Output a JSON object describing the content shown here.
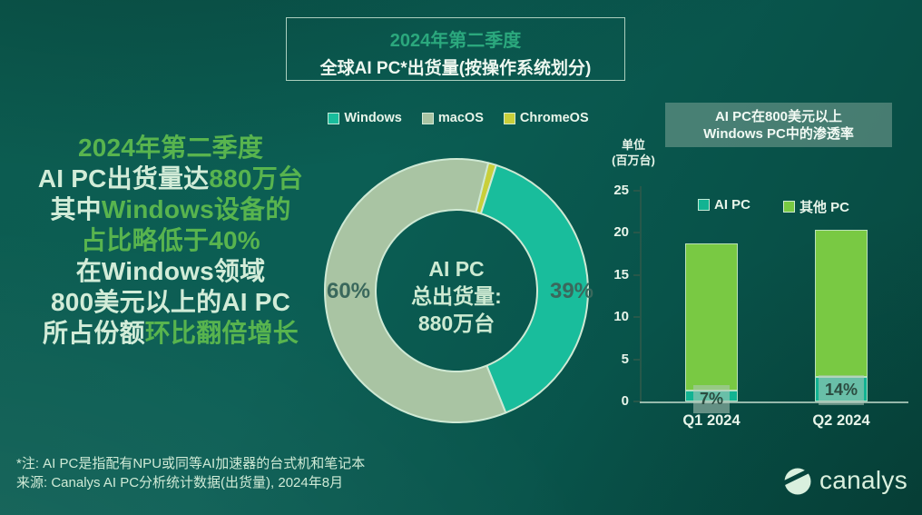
{
  "title_box": {
    "line1": "2024年第二季度",
    "line2": "全球AI PC*出货量(按操作系统划分)"
  },
  "headline": {
    "line1_green": "2024年第二季度",
    "line2_pale": "AI PC出货量达",
    "line2_green": "880万台",
    "line3_pale": "其中",
    "line3_green": "Windows设备的",
    "line4_green": "占比略低于40%",
    "line5_pale": "在Windows领域",
    "line6_pale": "800美元以上的AI PC",
    "line7_pale": "所占份额",
    "line7_green": "环比翻倍增长"
  },
  "os_legend": [
    {
      "label": "Windows",
      "color": "#19bd9c"
    },
    {
      "label": "macOS",
      "color": "#a9c4a3"
    },
    {
      "label": "ChromeOS",
      "color": "#c9cf3a"
    }
  ],
  "donut_labels": {
    "macos_pct": "60%",
    "windows_pct": "39%"
  },
  "right_panel": {
    "header_line1": "AI PC在800美元以上",
    "header_line2": "Windows PC中的渗透率",
    "unit_line1": "单位",
    "unit_line2": "(百万台)"
  },
  "footnotes": {
    "note": "*注: AI PC是指配有NPU或同等AI加速器的台式机和笔记本",
    "source": "来源: Canalys AI PC分析统计数据(出货量), 2024年8月"
  },
  "logo": {
    "text": "canalys"
  },
  "colors": {
    "accent_green": "#58b44e",
    "pale_mint": "#d2ecd8",
    "title_teal": "#2ba87d",
    "background": "#0a5b50"
  },
  "chart_data": [
    {
      "type": "pie",
      "title": "全球AI PC*出货量(按操作系统划分) 2024年第二季度",
      "donut": true,
      "rotation_deg": 14,
      "slice_border": "#cfe9d4",
      "slices": [
        {
          "label": "ChromeOS",
          "value": 1,
          "color": "#c9cf3a"
        },
        {
          "label": "Windows",
          "value": 39,
          "color": "#19bd9c"
        },
        {
          "label": "macOS",
          "value": 60,
          "color": "#a9c4a3"
        }
      ],
      "center_label": [
        "AI PC",
        "总出货量:",
        "880万台"
      ]
    },
    {
      "type": "bar",
      "stacked": true,
      "title": "AI PC在800美元以上Windows PC中的渗透率",
      "ylabel": "单位(百万台)",
      "ylim": [
        0,
        25
      ],
      "y_ticks": [
        0,
        5,
        10,
        15,
        20,
        25
      ],
      "categories": [
        "Q1 2024",
        "Q2 2024"
      ],
      "series": [
        {
          "name": "AI PC",
          "color": "#12b392",
          "values": [
            1.3,
            2.9
          ]
        },
        {
          "name": "其他 PC",
          "color": "#79c943",
          "values": [
            17.4,
            17.5
          ]
        }
      ],
      "totals": [
        18.7,
        20.4
      ],
      "pct_labels": [
        "7%",
        "14%"
      ]
    }
  ]
}
